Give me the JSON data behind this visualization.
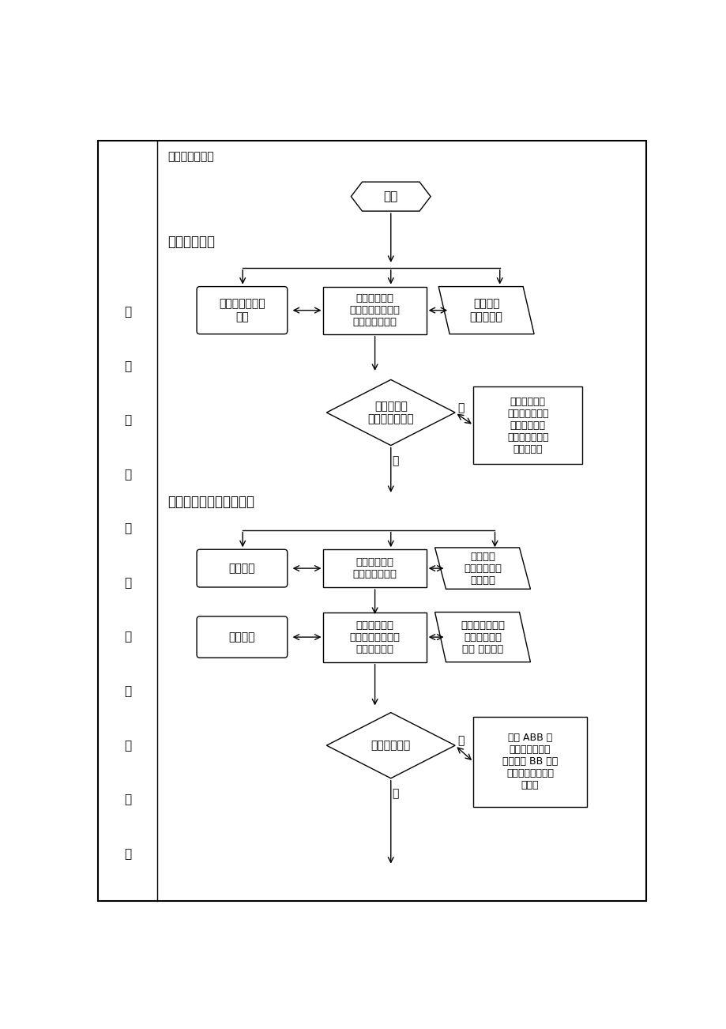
{
  "bg_color": "#ffffff",
  "border_color": "#000000",
  "text_color": "#000000",
  "title": "教学过程结构：",
  "section1": "一、激情导入",
  "section2": "二、复习词语，整体感知",
  "left_label_chars": [
    "课",
    "堂",
    "教",
    "学",
    "过",
    "程",
    "结",
    "构",
    "的",
    "设",
    "计"
  ],
  "start_text": "开始",
  "box1_text": "荷叶美景图片、\n音乐",
  "box2_text": "利用美丽的荷\n叶图片引入课题，\n激发学生兴趣。",
  "box3_text": "在情境中\n走进文本。",
  "diamond1_text": "激发兴趣，\n创设乐学氛围。",
  "diamond1_yes": "是",
  "diamond1_no": "否",
  "note1_text": "创设和再现情\n境，以童真和童\n趣引领学生融\n入文本，是本环\n节的关键。",
  "box4_text": "出示词语",
  "box5_text": "复习词语，为\n学文做好准备。",
  "box6_text": "多种形式\n读词，进行语\n言积累。",
  "box7_text": "出示问题",
  "box8_text": "提问：这个故\n事讲了荷叶和哪些\n小伙伴的事？",
  "box9_text": "说出：小水珠、\n小蜻蜓、小青\n蛙、 小鱼儿。",
  "diamond2_text": "体会语言运用",
  "diamond2_yes": "是",
  "diamond2_no": "否",
  "note2_text": "注意 ABB 式\n重叠形容词的读\n音，一般 BB 读阴\n平，如绿油油，沉\n甸甸。"
}
